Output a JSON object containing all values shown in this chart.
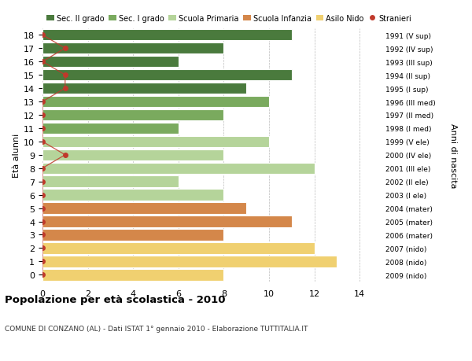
{
  "ages": [
    18,
    17,
    16,
    15,
    14,
    13,
    12,
    11,
    10,
    9,
    8,
    7,
    6,
    5,
    4,
    3,
    2,
    1,
    0
  ],
  "bar_values": [
    11,
    8,
    6,
    11,
    9,
    10,
    8,
    6,
    10,
    8,
    12,
    6,
    8,
    9,
    11,
    8,
    12,
    13,
    8
  ],
  "right_labels": [
    "1991 (V sup)",
    "1992 (IV sup)",
    "1993 (III sup)",
    "1994 (II sup)",
    "1995 (I sup)",
    "1996 (III med)",
    "1997 (II med)",
    "1998 (I med)",
    "1999 (V ele)",
    "2000 (IV ele)",
    "2001 (III ele)",
    "2002 (II ele)",
    "2003 (I ele)",
    "2004 (mater)",
    "2005 (mater)",
    "2006 (mater)",
    "2007 (nido)",
    "2008 (nido)",
    "2009 (nido)"
  ],
  "bar_colors": [
    "#4a7a3d",
    "#4a7a3d",
    "#4a7a3d",
    "#4a7a3d",
    "#4a7a3d",
    "#7aaa5e",
    "#7aaa5e",
    "#7aaa5e",
    "#b5d49a",
    "#b5d49a",
    "#b5d49a",
    "#b5d49a",
    "#b5d49a",
    "#d4874a",
    "#d4874a",
    "#d4874a",
    "#f0d070",
    "#f0d070",
    "#f0d070"
  ],
  "legend_labels": [
    "Sec. II grado",
    "Sec. I grado",
    "Scuola Primaria",
    "Scuola Infanzia",
    "Asilo Nido",
    "Stranieri"
  ],
  "legend_colors": [
    "#4a7a3d",
    "#7aaa5e",
    "#b5d49a",
    "#d4874a",
    "#f0d070",
    "#c0392b"
  ],
  "ylabel_left": "Età alunni",
  "ylabel_right": "Anni di nascita",
  "title": "Popolazione per età scolastica - 2010",
  "subtitle": "COMUNE DI CONZANO (AL) - Dati ISTAT 1° gennaio 2010 - Elaborazione TUTTITALIA.IT",
  "xlim": [
    0,
    15
  ],
  "xticks": [
    0,
    2,
    4,
    6,
    8,
    10,
    12,
    14
  ],
  "stranieri_x": [
    0,
    1,
    0,
    1,
    1,
    0,
    0,
    0,
    0,
    1,
    0,
    0,
    0,
    0,
    0,
    0,
    0,
    0,
    0
  ],
  "stranieri_color": "#c0392b",
  "bg_color": "#ffffff",
  "grid_color": "#bbbbbb"
}
